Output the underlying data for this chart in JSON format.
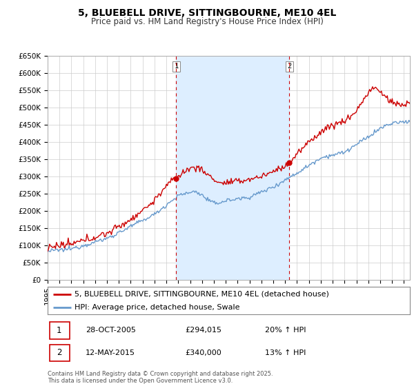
{
  "title": "5, BLUEBELL DRIVE, SITTINGBOURNE, ME10 4EL",
  "subtitle": "Price paid vs. HM Land Registry's House Price Index (HPI)",
  "ylim": [
    0,
    650000
  ],
  "yticks": [
    0,
    50000,
    100000,
    150000,
    200000,
    250000,
    300000,
    350000,
    400000,
    450000,
    500000,
    550000,
    600000,
    650000
  ],
  "ytick_labels": [
    "£0",
    "£50K",
    "£100K",
    "£150K",
    "£200K",
    "£250K",
    "£300K",
    "£350K",
    "£400K",
    "£450K",
    "£500K",
    "£550K",
    "£600K",
    "£650K"
  ],
  "xlim_start": 1995.0,
  "xlim_end": 2025.5,
  "property_color": "#cc0000",
  "hpi_color": "#6699cc",
  "shade_color": "#ddeeff",
  "background_color": "#ffffff",
  "grid_color": "#cccccc",
  "sale1_x": 2005.83,
  "sale1_y": 294015,
  "sale2_x": 2015.36,
  "sale2_y": 340000,
  "legend1": "5, BLUEBELL DRIVE, SITTINGBOURNE, ME10 4EL (detached house)",
  "legend2": "HPI: Average price, detached house, Swale",
  "annot1_date": "28-OCT-2005",
  "annot1_price": "£294,015",
  "annot1_hpi": "20% ↑ HPI",
  "annot2_date": "12-MAY-2015",
  "annot2_price": "£340,000",
  "annot2_hpi": "13% ↑ HPI",
  "footer": "Contains HM Land Registry data © Crown copyright and database right 2025.\nThis data is licensed under the Open Government Licence v3.0.",
  "title_fontsize": 10,
  "subtitle_fontsize": 8.5,
  "tick_fontsize": 7.5,
  "legend_fontsize": 8,
  "annot_fontsize": 8,
  "footer_fontsize": 6
}
